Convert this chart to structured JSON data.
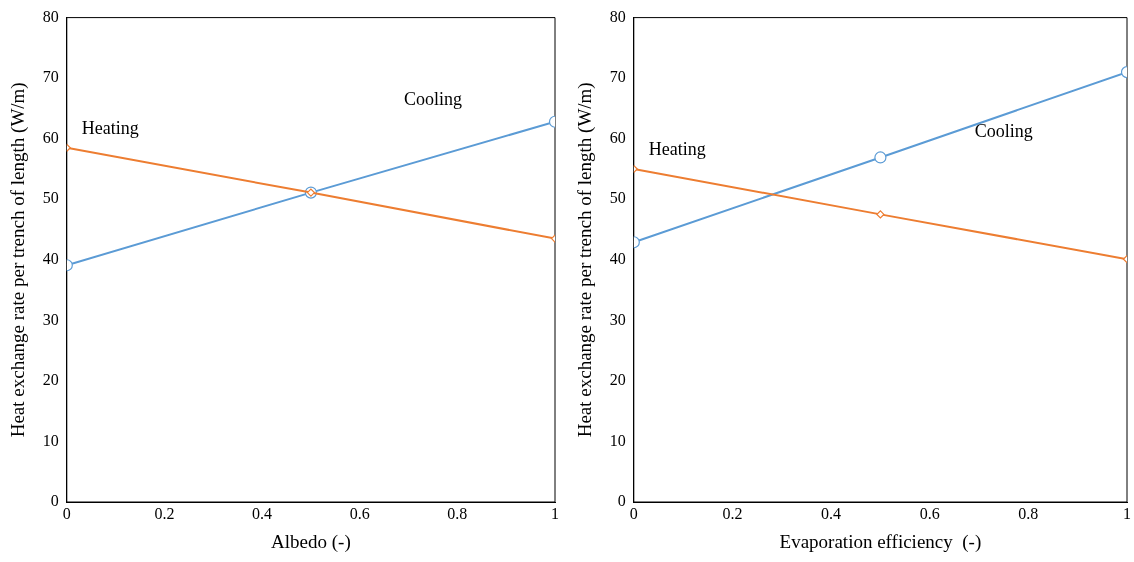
{
  "chart_data": [
    {
      "type": "line",
      "xlabel": "Albedo (-)",
      "ylabel": "Heat exchange rate per trench of length (W/m)",
      "x": [
        0,
        0.5,
        1
      ],
      "xlim": [
        0,
        1
      ],
      "xticks": [
        0,
        0.2,
        0.4,
        0.6,
        0.8,
        1
      ],
      "ylim": [
        0,
        80
      ],
      "yticks": [
        0,
        10,
        20,
        30,
        40,
        50,
        60,
        70,
        80
      ],
      "grid": false,
      "legend": false,
      "line_style": "solid",
      "series": [
        {
          "name": "Heating",
          "color": "#ed7d31",
          "marker": "diamond",
          "values": [
            58.5,
            51.1,
            43.5
          ]
        },
        {
          "name": "Cooling",
          "color": "#5b9bd5",
          "marker": "circle",
          "values": [
            39.1,
            51.1,
            62.8
          ]
        }
      ]
    },
    {
      "type": "line",
      "xlabel": "Evaporation efficiency  (-)",
      "ylabel": "Heat exchange rate per trench of length (W/m)",
      "x": [
        0,
        0.5,
        1
      ],
      "xlim": [
        0,
        1
      ],
      "xticks": [
        0,
        0.2,
        0.4,
        0.6,
        0.8,
        1
      ],
      "ylim": [
        0,
        80
      ],
      "yticks": [
        0,
        10,
        20,
        30,
        40,
        50,
        60,
        70,
        80
      ],
      "grid": false,
      "legend": false,
      "line_style": "solid",
      "series": [
        {
          "name": "Heating",
          "color": "#ed7d31",
          "marker": "diamond",
          "values": [
            55,
            47.5,
            40.1
          ]
        },
        {
          "name": "Cooling",
          "color": "#5b9bd5",
          "marker": "circle",
          "values": [
            42.9,
            56.9,
            71
          ]
        }
      ]
    }
  ]
}
